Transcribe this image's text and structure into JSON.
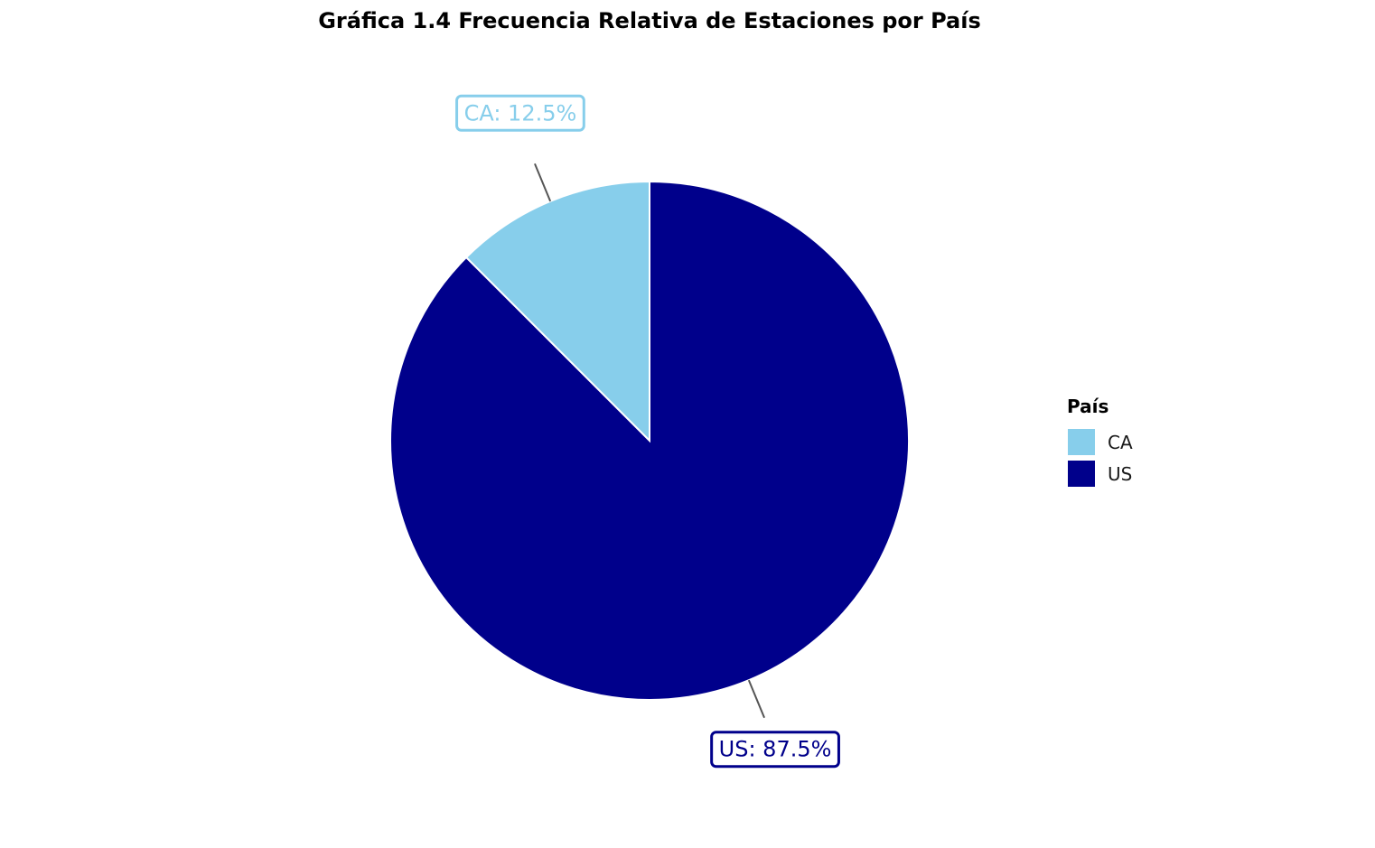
{
  "chart_data": {
    "type": "pie",
    "title": "Gráfica 1.4 Frecuencia Relativa de Estaciones por País",
    "categories": [
      "CA",
      "US"
    ],
    "values": [
      12.5,
      87.5
    ],
    "colors": [
      "#87CEEB",
      "#00008B"
    ],
    "data_labels": [
      "CA: 12.5%",
      "US: 87.5%"
    ],
    "legend": {
      "title": "País",
      "entries": [
        "CA",
        "US"
      ],
      "placement": "right"
    }
  }
}
